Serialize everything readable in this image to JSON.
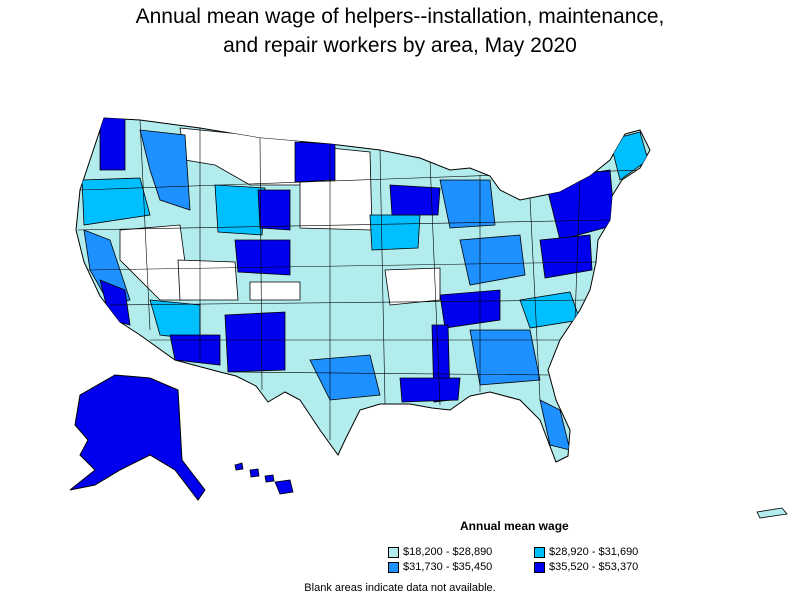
{
  "title_line1": "Annual mean wage of helpers--installation, maintenance,",
  "title_line2": "and repair workers by area, May 2020",
  "legend": {
    "title": "Annual mean wage",
    "items": [
      {
        "label": "$18,200 - $28,890",
        "color": "#b2ecec"
      },
      {
        "label": "$28,920 - $31,690",
        "color": "#00bfff"
      },
      {
        "label": "$31,730 - $35,450",
        "color": "#1e90ff"
      },
      {
        "label": "$35,520 - $53,370",
        "color": "#0000ee"
      }
    ]
  },
  "footnote": "Blank areas indicate data not available."
}
